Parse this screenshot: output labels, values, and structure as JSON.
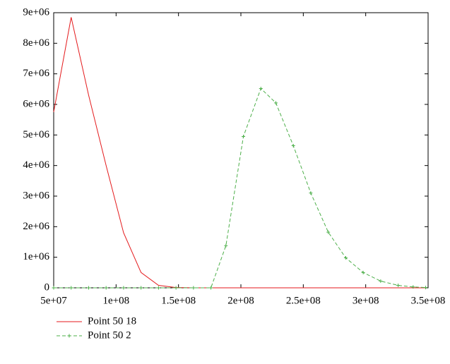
{
  "chart_data": {
    "type": "line",
    "x": [
      50000000,
      64000000,
      78000000,
      92000000,
      106000000,
      120000000,
      134000000,
      148000000,
      162000000,
      176000000,
      188000000,
      202000000,
      216000000,
      228000000,
      242000000,
      256000000,
      270000000,
      284000000,
      298000000,
      312000000,
      326000000,
      338000000,
      348000000
    ],
    "series": [
      {
        "name": "Point 50 18",
        "color": "#e41a1c",
        "dash": false,
        "marker": "none",
        "values": [
          5750000,
          8850000,
          6300000,
          4000000,
          1800000,
          500000,
          80000,
          10000,
          0,
          0,
          0,
          0,
          0,
          0,
          0,
          0,
          0,
          0,
          0,
          0,
          0,
          0,
          0
        ]
      },
      {
        "name": "Point 50 2",
        "color": "#4daf4a",
        "dash": true,
        "marker": "+",
        "values": [
          0,
          0,
          0,
          0,
          0,
          0,
          0,
          0,
          0,
          0,
          1380000,
          4950000,
          6520000,
          6050000,
          4650000,
          3100000,
          1820000,
          980000,
          500000,
          220000,
          80000,
          30000,
          10000
        ]
      }
    ],
    "xlim": [
      50000000,
      350000000
    ],
    "xticks": [
      {
        "value": 50000000,
        "label": "5e+07"
      },
      {
        "value": 100000000,
        "label": "1e+08"
      },
      {
        "value": 150000000,
        "label": "1.5e+08"
      },
      {
        "value": 200000000,
        "label": "2e+08"
      },
      {
        "value": 250000000,
        "label": "2.5e+08"
      },
      {
        "value": 300000000,
        "label": "3e+08"
      },
      {
        "value": 350000000,
        "label": "3.5e+08"
      }
    ],
    "ylim": [
      0,
      9000000
    ],
    "yticks": [
      0,
      {
        "value": 1000000,
        "label": "1e+06"
      },
      {
        "value": 2000000,
        "label": "2e+06"
      },
      {
        "value": 3000000,
        "label": "3e+06"
      },
      {
        "value": 4000000,
        "label": "4e+06"
      },
      {
        "value": 5000000,
        "label": "5e+06"
      },
      {
        "value": 6000000,
        "label": "6e+06"
      },
      {
        "value": 7000000,
        "label": "7e+06"
      },
      {
        "value": 8000000,
        "label": "8e+06"
      },
      {
        "value": 9000000,
        "label": "9e+06"
      }
    ],
    "grid": false
  }
}
